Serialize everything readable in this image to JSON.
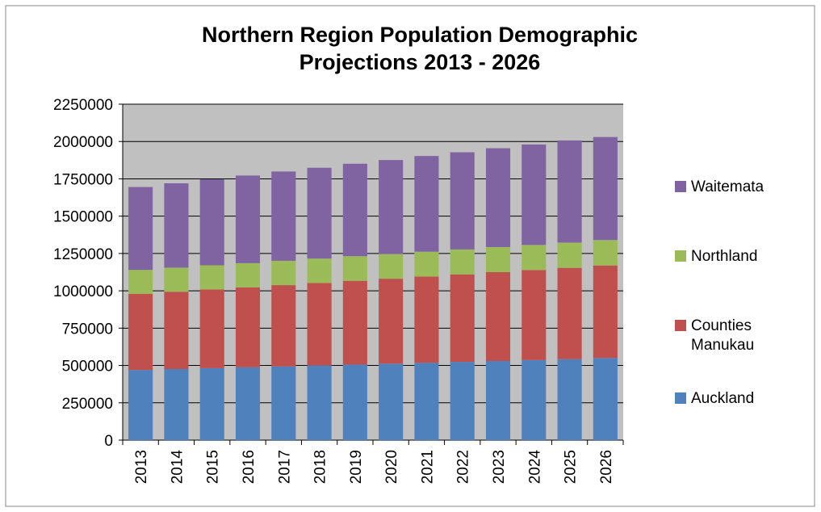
{
  "chart_data": {
    "type": "stacked_bar",
    "title": "Northern Region Population Demographic Projections 2013 - 2026",
    "categories": [
      "2013",
      "2014",
      "2015",
      "2016",
      "2017",
      "2018",
      "2019",
      "2020",
      "2021",
      "2022",
      "2023",
      "2024",
      "2025",
      "2026"
    ],
    "series": [
      {
        "name": "Auckland",
        "color": "#4f81bd",
        "values": [
          470000,
          476000,
          482000,
          488000,
          494000,
          500000,
          506000,
          512000,
          518000,
          524000,
          530000,
          536000,
          542000,
          550000
        ]
      },
      {
        "name": "Counties Manukau",
        "color": "#c0504d",
        "values": [
          510000,
          518000,
          527000,
          535000,
          544000,
          552000,
          561000,
          569000,
          578000,
          586000,
          595000,
          603000,
          612000,
          620000
        ]
      },
      {
        "name": "Northland",
        "color": "#9bbb59",
        "values": [
          160000,
          161000,
          162000,
          162000,
          163000,
          164000,
          165000,
          165000,
          166000,
          167000,
          168000,
          168000,
          169000,
          170000
        ]
      },
      {
        "name": "Waitemata",
        "color": "#8064a2",
        "values": [
          555000,
          565000,
          576000,
          587000,
          598000,
          608000,
          619000,
          630000,
          641000,
          651000,
          662000,
          673000,
          684000,
          690000
        ]
      }
    ],
    "ylim": [
      0,
      2250000
    ],
    "yticks": [
      0,
      250000,
      500000,
      750000,
      1000000,
      1250000,
      1500000,
      1750000,
      2000000,
      2250000
    ],
    "grid": true,
    "legend": "right"
  }
}
